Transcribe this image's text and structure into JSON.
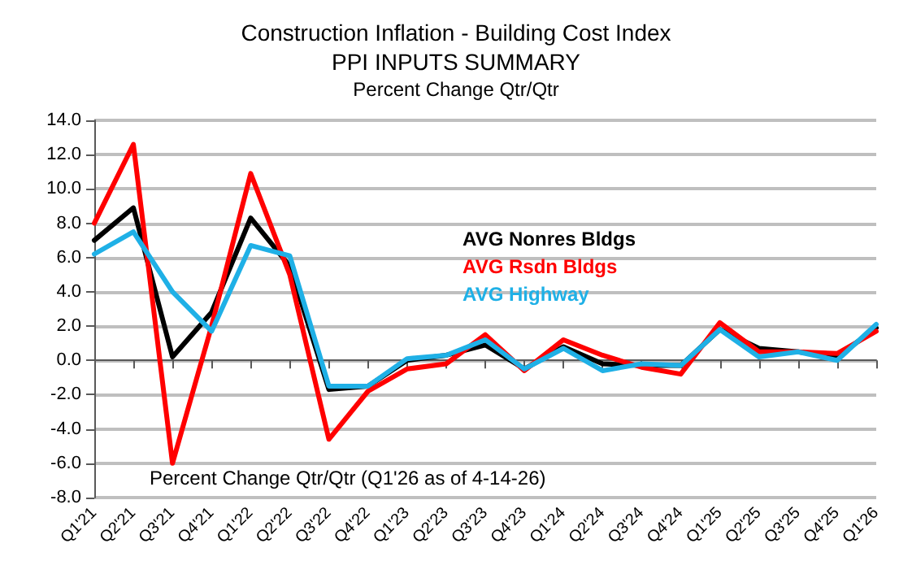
{
  "chart_data": {
    "type": "line",
    "title": "Construction Inflation - Building Cost Index\nPPI INPUTS SUMMARY",
    "subtitle": "Percent Change Qtr/Qtr",
    "categories": [
      "Q1'21",
      "Q2'21",
      "Q3'21",
      "Q4'21",
      "Q1'22",
      "Q2'22",
      "Q3'22",
      "Q4'22",
      "Q1'23",
      "Q2'23",
      "Q3'23",
      "Q4'23",
      "Q1'24",
      "Q2'24",
      "Q3'24",
      "Q4'24",
      "Q1'25",
      "Q2'25",
      "Q3'25",
      "Q4'25",
      "Q1'26"
    ],
    "series": [
      {
        "name": "AVG Nonres Bldgs",
        "color": "#000000",
        "values": [
          7.0,
          8.9,
          0.2,
          2.8,
          8.3,
          5.5,
          -1.7,
          -1.5,
          0.0,
          0.3,
          0.9,
          -0.5,
          0.8,
          -0.2,
          -0.3,
          -0.3,
          1.8,
          0.7,
          0.5,
          0.2,
          1.9
        ]
      },
      {
        "name": "AVG Rsdn Bldgs",
        "color": "#ff0000",
        "values": [
          8.0,
          12.6,
          -6.0,
          2.0,
          10.9,
          5.0,
          -4.6,
          -1.8,
          -0.5,
          -0.2,
          1.5,
          -0.6,
          1.2,
          0.3,
          -0.4,
          -0.8,
          2.2,
          0.5,
          0.5,
          0.4,
          1.7
        ]
      },
      {
        "name": "AVG Highway",
        "color": "#1fb0e6",
        "values": [
          6.2,
          7.5,
          4.0,
          1.7,
          6.7,
          6.1,
          -1.5,
          -1.5,
          0.1,
          0.3,
          1.2,
          -0.5,
          0.7,
          -0.6,
          -0.2,
          -0.3,
          1.8,
          0.2,
          0.5,
          0.0,
          2.1
        ]
      }
    ],
    "ylim": [
      -8,
      14
    ],
    "yticks": [
      {
        "value": -8,
        "label": "-8.0"
      },
      {
        "value": -6,
        "label": "-6.0"
      },
      {
        "value": -4,
        "label": "-4.0"
      },
      {
        "value": -2,
        "label": "-2.0"
      },
      {
        "value": 0,
        "label": "0.0"
      },
      {
        "value": 2,
        "label": "2.0"
      },
      {
        "value": 4,
        "label": "4.0"
      },
      {
        "value": 6,
        "label": "6.0"
      },
      {
        "value": 8,
        "label": "8.0"
      },
      {
        "value": 10,
        "label": "10.0"
      },
      {
        "value": 12,
        "label": "12.0"
      },
      {
        "value": 14,
        "label": "14.0"
      }
    ],
    "grid": "y",
    "legend": "center",
    "marker": "none",
    "line_style": "solid",
    "annotations": [
      "Percent Change Qtr/Qtr (Q1'26 as of 4-14-26)"
    ]
  }
}
